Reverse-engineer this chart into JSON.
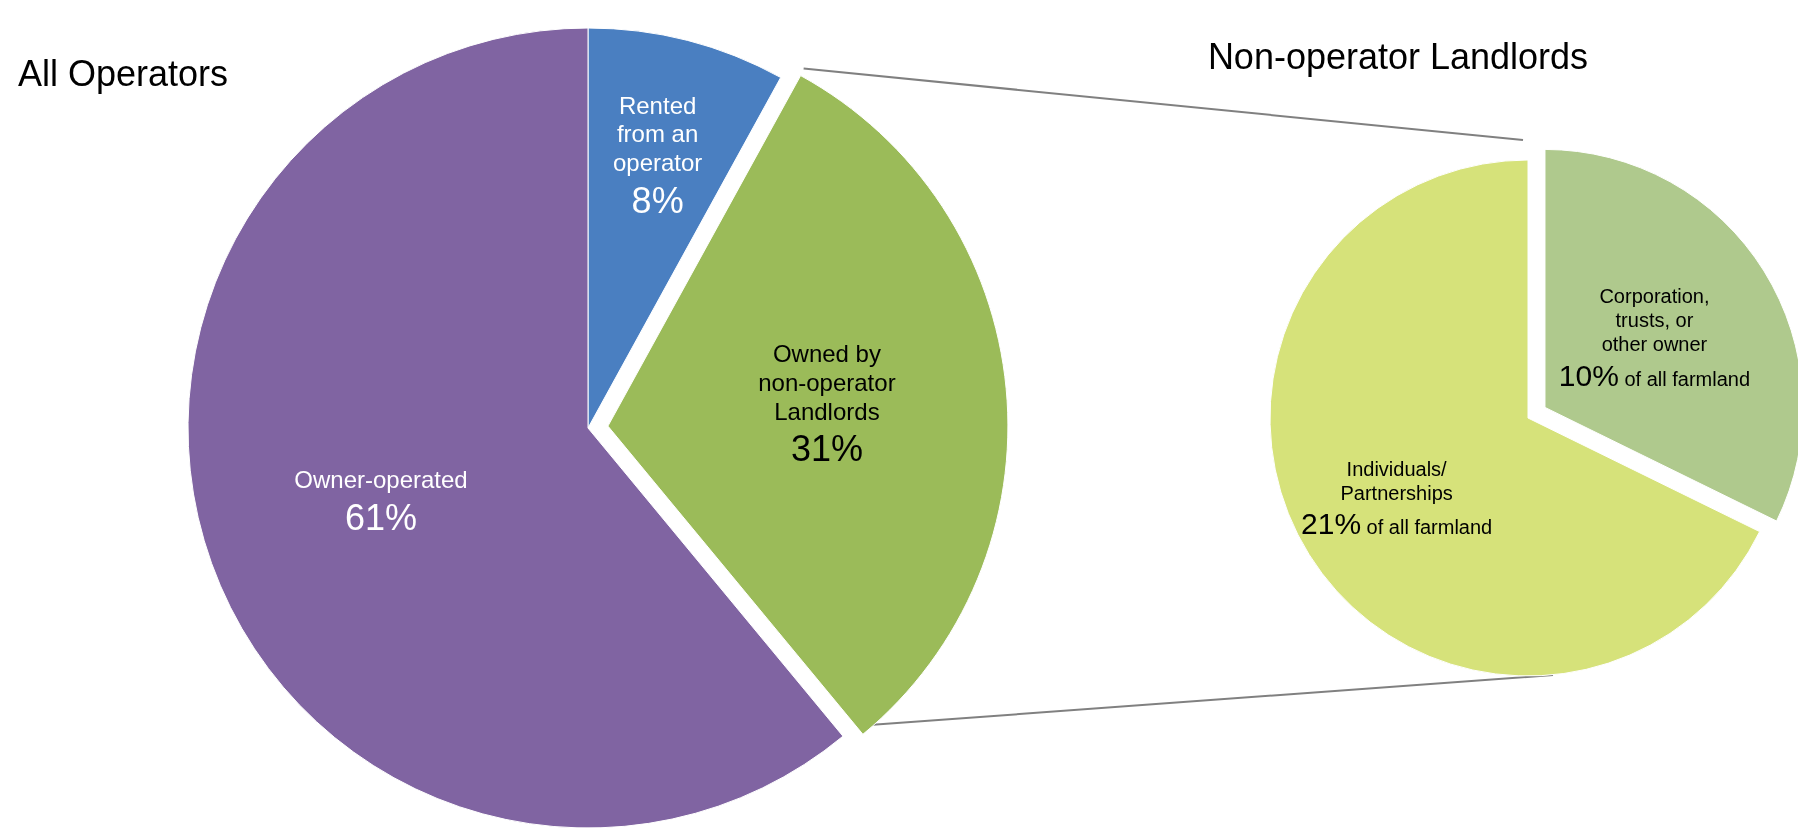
{
  "chart_data": [
    {
      "type": "pie",
      "title": "All Operators",
      "categories": [
        "Rented from an operator",
        "Owned by non-operator Landlords",
        "Owner-operated"
      ],
      "values": [
        8,
        31,
        61
      ],
      "colors": [
        "#4a7fc1",
        "#9bbb59",
        "#8064a2"
      ],
      "value_labels": [
        "8%",
        "31%",
        "61%"
      ]
    },
    {
      "type": "pie",
      "title": "Non-operator Landlords",
      "categories": [
        "Corporation, trusts, or other owner",
        "Individuals/ Partnerships"
      ],
      "values": [
        10,
        21
      ],
      "colors": [
        "#afc98d",
        "#d6e27a"
      ],
      "value_labels": [
        "10% of all farmland",
        "21% of all farmland"
      ]
    }
  ]
}
